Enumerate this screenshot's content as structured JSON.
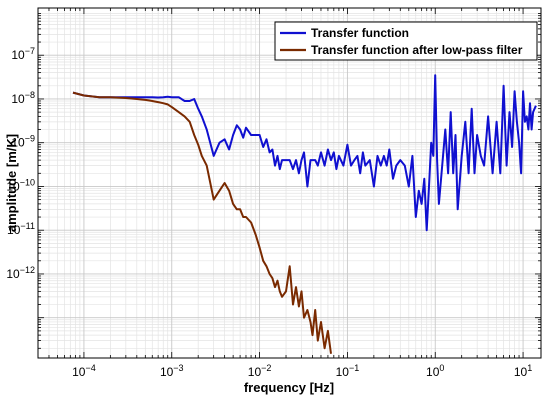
{
  "chart_data": {
    "type": "line",
    "title": "",
    "xlabel": "frequency [Hz]",
    "ylabel": "amplitude [m/K]",
    "xscale": "log",
    "yscale": "log",
    "xlim": [
      3e-05,
      16
    ],
    "ylim": [
      1.2e-14,
      1.2e-06
    ],
    "grid": true,
    "legend_position": "top-right",
    "x_ticks": [
      {
        "value": 0.0001,
        "base": "10",
        "exp": "−4"
      },
      {
        "value": 0.001,
        "base": "10",
        "exp": "−3"
      },
      {
        "value": 0.01,
        "base": "10",
        "exp": "−2"
      },
      {
        "value": 0.1,
        "base": "10",
        "exp": "−1"
      },
      {
        "value": 1,
        "base": "10",
        "exp": "0"
      },
      {
        "value": 10,
        "base": "10",
        "exp": "1"
      }
    ],
    "y_ticks": [
      {
        "value": 1e-12,
        "base": "10",
        "exp": "−12"
      },
      {
        "value": 1e-11,
        "base": "10",
        "exp": "−11"
      },
      {
        "value": 1e-10,
        "base": "10",
        "exp": "−10"
      },
      {
        "value": 1e-09,
        "base": "10",
        "exp": "−9"
      },
      {
        "value": 1e-08,
        "base": "10",
        "exp": "−8"
      },
      {
        "value": 1e-07,
        "base": "10",
        "exp": "−7"
      }
    ],
    "series": [
      {
        "name": "Transfer function",
        "color": "#1010d0",
        "x": [
          7.5e-05,
          0.0001,
          0.00015,
          0.0002,
          0.0003,
          0.0004,
          0.0005,
          0.0006,
          0.0007,
          0.0008,
          0.0009,
          0.001,
          0.0012,
          0.0014,
          0.0016,
          0.0018,
          0.002,
          0.0022,
          0.0025,
          0.003,
          0.0035,
          0.004,
          0.0045,
          0.005,
          0.0055,
          0.006,
          0.0065,
          0.007,
          0.008,
          0.009,
          0.01,
          0.011,
          0.012,
          0.013,
          0.014,
          0.015,
          0.016,
          0.017,
          0.018,
          0.02,
          0.022,
          0.024,
          0.026,
          0.028,
          0.03,
          0.032,
          0.035,
          0.038,
          0.04,
          0.043,
          0.046,
          0.05,
          0.055,
          0.06,
          0.065,
          0.07,
          0.075,
          0.08,
          0.09,
          0.1,
          0.11,
          0.12,
          0.13,
          0.14,
          0.15,
          0.16,
          0.18,
          0.2,
          0.22,
          0.24,
          0.26,
          0.28,
          0.3,
          0.33,
          0.36,
          0.4,
          0.45,
          0.5,
          0.55,
          0.6,
          0.65,
          0.7,
          0.75,
          0.8,
          0.85,
          0.9,
          0.95,
          1.0,
          1.05,
          1.1,
          1.2,
          1.3,
          1.4,
          1.5,
          1.6,
          1.7,
          1.8,
          2.0,
          2.2,
          2.4,
          2.6,
          2.8,
          3.0,
          3.3,
          3.6,
          4.0,
          4.5,
          5.0,
          5.5,
          6.0,
          6.5,
          7.0,
          7.5,
          8.0,
          8.5,
          9.0,
          9.5,
          10,
          10.5,
          11,
          11.5,
          12,
          12.5,
          13,
          14
        ],
        "y": [
          1.4e-08,
          1.2e-08,
          1.1e-08,
          1.1e-08,
          1.1e-08,
          1.1e-08,
          1.1e-08,
          1.1e-08,
          1.08e-08,
          1.1e-08,
          1.12e-08,
          1.1e-08,
          1.1e-08,
          9e-09,
          9e-09,
          1e-08,
          6e-09,
          4e-09,
          2e-09,
          5e-10,
          1e-09,
          1.2e-09,
          7e-10,
          1.5e-09,
          2.5e-09,
          2e-09,
          1.3e-09,
          2.2e-09,
          1.5e-09,
          1.5e-09,
          1.5e-09,
          8e-10,
          1.2e-09,
          6e-10,
          7e-10,
          3e-10,
          5e-10,
          2.5e-10,
          4e-10,
          4e-10,
          4e-10,
          2.5e-10,
          4e-10,
          2e-10,
          4e-10,
          6e-10,
          1e-10,
          4e-10,
          4e-10,
          4e-10,
          3e-10,
          6e-10,
          3e-10,
          7e-10,
          4e-10,
          6e-10,
          2.5e-10,
          5e-10,
          3e-10,
          9e-10,
          3e-10,
          4e-10,
          5e-10,
          2e-10,
          6e-10,
          3e-10,
          4e-10,
          1e-10,
          5e-10,
          3e-10,
          5e-10,
          3e-10,
          7e-10,
          1.5e-10,
          3e-10,
          4e-10,
          3e-10,
          1e-10,
          5e-10,
          2e-11,
          8e-11,
          4e-11,
          1.5e-10,
          1e-11,
          1e-10,
          1e-09,
          5e-10,
          3.5e-08,
          4e-10,
          4e-11,
          3e-10,
          2e-09,
          2e-10,
          5e-09,
          2e-10,
          1.5e-09,
          3e-11,
          5e-10,
          3e-09,
          2e-10,
          6e-09,
          2e-10,
          1.5e-09,
          5e-10,
          3e-10,
          4e-09,
          2e-10,
          3e-09,
          2e-10,
          2e-08,
          3e-10,
          5e-09,
          8e-10,
          1.5e-08,
          3e-09,
          1e-09,
          2e-10,
          1.5e-08,
          3e-09,
          4e-09,
          2e-09,
          8e-09,
          2e-09,
          5e-09,
          7e-09
        ],
        "note_end": "series continues to upper right region"
      },
      {
        "name": "Transfer function after low-pass filter",
        "color": "#7a2a00",
        "x": [
          7.5e-05,
          0.0001,
          0.00015,
          0.0002,
          0.0003,
          0.0004,
          0.0005,
          0.0006,
          0.0007,
          0.0008,
          0.0009,
          0.001,
          0.0012,
          0.0014,
          0.0016,
          0.0018,
          0.002,
          0.0022,
          0.0025,
          0.003,
          0.0035,
          0.004,
          0.0045,
          0.005,
          0.0055,
          0.006,
          0.0065,
          0.007,
          0.008,
          0.009,
          0.01,
          0.011,
          0.012,
          0.013,
          0.014,
          0.015,
          0.016,
          0.017,
          0.018,
          0.02,
          0.022,
          0.024,
          0.026,
          0.028,
          0.03,
          0.032,
          0.035,
          0.038,
          0.04,
          0.043,
          0.046,
          0.05,
          0.055,
          0.06,
          0.065
        ],
        "y": [
          1.4e-08,
          1.2e-08,
          1.1e-08,
          1.1e-08,
          1.05e-08,
          1e-08,
          9.5e-09,
          9e-09,
          8.5e-09,
          8e-09,
          7.5e-09,
          6.5e-09,
          5e-09,
          4e-09,
          3e-09,
          1.5e-09,
          9e-10,
          5e-10,
          3e-10,
          5e-11,
          8e-11,
          1.2e-10,
          8e-11,
          4e-11,
          3e-11,
          3e-11,
          2e-11,
          2e-11,
          1.5e-11,
          8e-12,
          4e-12,
          2e-12,
          1.5e-12,
          1e-12,
          8e-13,
          5e-13,
          7e-13,
          4e-13,
          3e-13,
          4e-13,
          1.5e-12,
          2e-13,
          5e-13,
          1.8e-13,
          4e-13,
          1e-13,
          1.5e-13,
          8e-14,
          4e-14,
          1.5e-13,
          3e-14,
          8e-14,
          2e-14,
          5e-14,
          1.5e-14
        ]
      }
    ]
  }
}
